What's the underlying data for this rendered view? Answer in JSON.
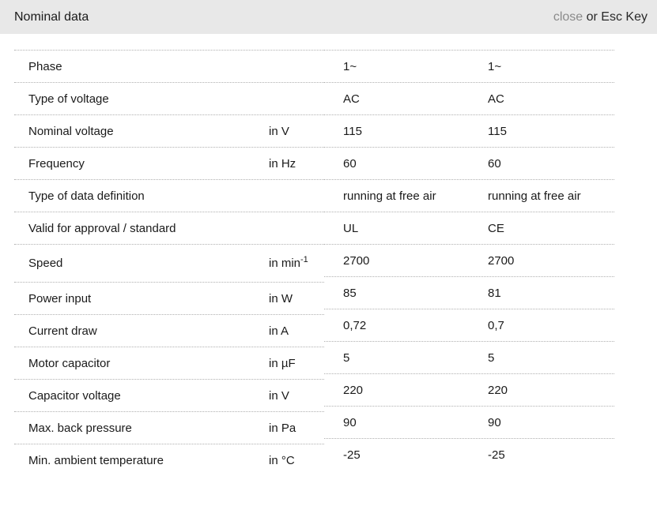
{
  "header": {
    "title": "Nominal data",
    "close_label": "close",
    "close_hint": " or Esc Key"
  },
  "table": {
    "rows": [
      {
        "label": "Phase",
        "unit": "",
        "values": [
          "1~",
          "1~"
        ]
      },
      {
        "label": "Type of voltage",
        "unit": "",
        "values": [
          "AC",
          "AC"
        ]
      },
      {
        "label": "Nominal voltage",
        "unit": "in V",
        "values": [
          "115",
          "115"
        ]
      },
      {
        "label": "Frequency",
        "unit": "in Hz",
        "values": [
          "60",
          "60"
        ]
      },
      {
        "label": "Type of data definition",
        "unit": "",
        "values": [
          "running at free air",
          "running at free air"
        ]
      },
      {
        "label": "Valid for approval / standard",
        "unit": "",
        "values": [
          "UL",
          "CE"
        ]
      },
      {
        "label": "Speed",
        "unit": "in min",
        "unit_sup": "-1",
        "tall": true,
        "values": [
          "2700",
          "2700"
        ]
      },
      {
        "label": "Power input",
        "unit": "in W",
        "values": [
          "85",
          "81"
        ]
      },
      {
        "label": "Current draw",
        "unit": "in A",
        "values": [
          "0,72",
          "0,7"
        ]
      },
      {
        "label": "Motor capacitor",
        "unit": "in µF",
        "values": [
          "5",
          "5"
        ]
      },
      {
        "label": "Capacitor voltage",
        "unit": "in V",
        "values": [
          "220",
          "220"
        ]
      },
      {
        "label": "Max. back pressure",
        "unit": "in Pa",
        "values": [
          "90",
          "90"
        ]
      },
      {
        "label": "Min. ambient temperature",
        "unit": "in °C",
        "values": [
          "-25",
          "-25"
        ]
      }
    ]
  },
  "colors": {
    "header_bg": "#e8e8e8",
    "separator": "#b0b0b0",
    "text": "#1a1a1a",
    "close_link": "#8a8a8a"
  }
}
